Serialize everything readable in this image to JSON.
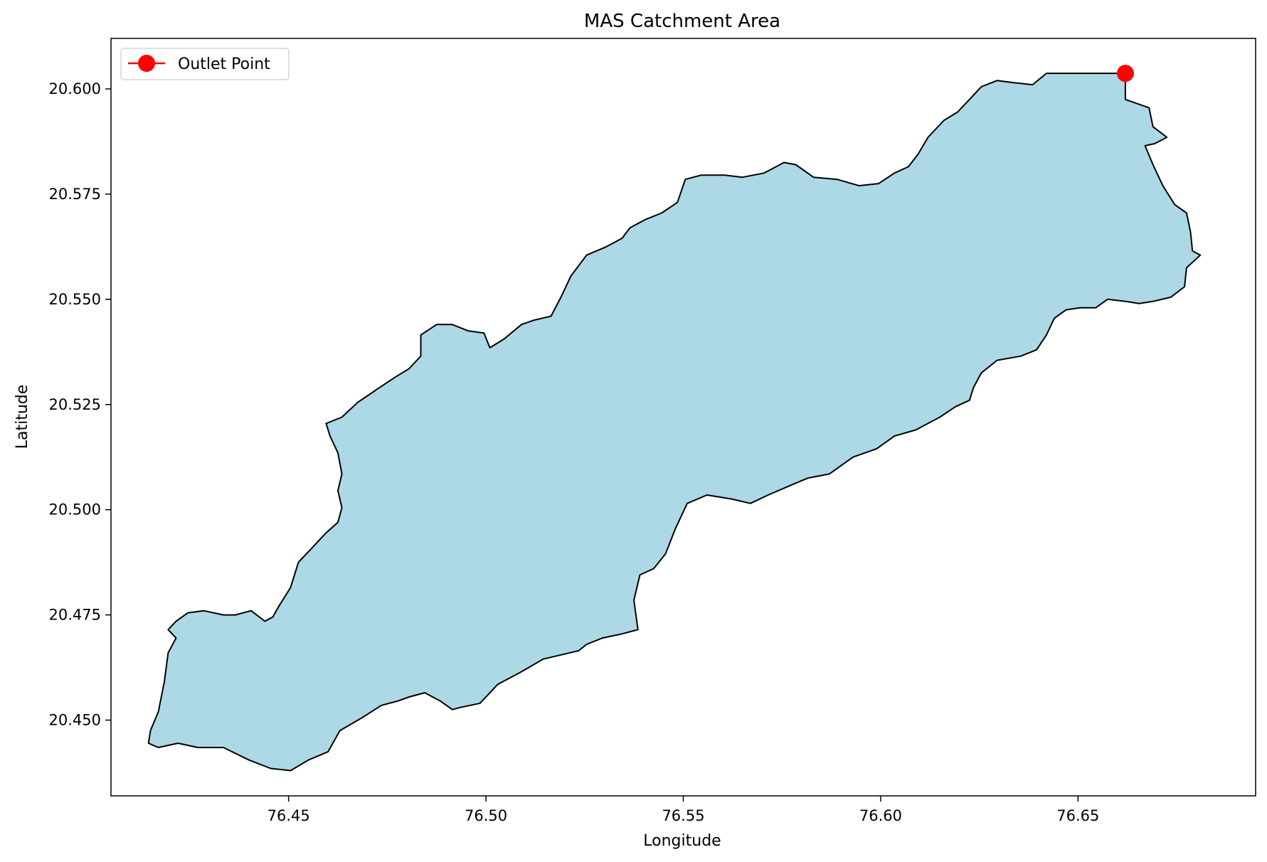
{
  "title": "MAS Catchment Area",
  "xlabel": "Longitude",
  "ylabel": "Latitude",
  "legend": {
    "label": "Outlet Point",
    "placement": "upper-left"
  },
  "colors": {
    "fill": "#add8e6",
    "edge": "#000000",
    "outlet": "#ff0000"
  },
  "chart_data": {
    "type": "map",
    "xlim": [
      76.405,
      76.695
    ],
    "ylim": [
      20.432,
      20.612
    ],
    "xticks": [
      76.45,
      76.5,
      76.55,
      76.6,
      76.65
    ],
    "xtick_labels": [
      "76.45",
      "76.50",
      "76.55",
      "76.60",
      "76.65"
    ],
    "yticks": [
      20.45,
      20.475,
      20.5,
      20.525,
      20.55,
      20.575,
      20.6
    ],
    "ytick_labels": [
      "20.450",
      "20.475",
      "20.500",
      "20.525",
      "20.550",
      "20.575",
      "20.600"
    ],
    "outlet": {
      "lon": 76.662,
      "lat": 20.6037
    },
    "catchment_boundary": [
      [
        76.642,
        20.6037
      ],
      [
        76.662,
        20.6037
      ],
      [
        76.662,
        20.5975
      ],
      [
        76.668,
        20.5955
      ],
      [
        76.669,
        20.591
      ],
      [
        76.6725,
        20.5885
      ],
      [
        76.6695,
        20.587
      ],
      [
        76.667,
        20.5865
      ],
      [
        76.669,
        20.582
      ],
      [
        76.6715,
        20.577
      ],
      [
        76.6745,
        20.5725
      ],
      [
        76.6775,
        20.5705
      ],
      [
        76.6785,
        20.566
      ],
      [
        76.679,
        20.5615
      ],
      [
        76.681,
        20.5605
      ],
      [
        76.6775,
        20.5575
      ],
      [
        76.677,
        20.553
      ],
      [
        76.6735,
        20.5505
      ],
      [
        76.669,
        20.5495
      ],
      [
        76.6655,
        20.549
      ],
      [
        76.662,
        20.5495
      ],
      [
        76.6575,
        20.55
      ],
      [
        76.6545,
        20.548
      ],
      [
        76.6505,
        20.548
      ],
      [
        76.647,
        20.5475
      ],
      [
        76.644,
        20.5455
      ],
      [
        76.642,
        20.5415
      ],
      [
        76.6395,
        20.538
      ],
      [
        76.6355,
        20.5365
      ],
      [
        76.6295,
        20.5355
      ],
      [
        76.6255,
        20.5325
      ],
      [
        76.6235,
        20.529
      ],
      [
        76.6225,
        20.526
      ],
      [
        76.619,
        20.5245
      ],
      [
        76.615,
        20.522
      ],
      [
        76.609,
        20.519
      ],
      [
        76.6035,
        20.5175
      ],
      [
        76.599,
        20.5145
      ],
      [
        76.593,
        20.5125
      ],
      [
        76.587,
        20.5085
      ],
      [
        76.5815,
        20.5075
      ],
      [
        76.5765,
        20.5055
      ],
      [
        76.5715,
        20.5035
      ],
      [
        76.567,
        20.5015
      ],
      [
        76.5625,
        20.5025
      ],
      [
        76.556,
        20.5035
      ],
      [
        76.551,
        20.5015
      ],
      [
        76.548,
        20.4955
      ],
      [
        76.5455,
        20.4895
      ],
      [
        76.5425,
        20.486
      ],
      [
        76.539,
        20.4845
      ],
      [
        76.5375,
        20.4785
      ],
      [
        76.5385,
        20.4715
      ],
      [
        76.5345,
        20.4705
      ],
      [
        76.5295,
        20.4695
      ],
      [
        76.5255,
        20.468
      ],
      [
        76.5235,
        20.4665
      ],
      [
        76.519,
        20.4655
      ],
      [
        76.5145,
        20.4645
      ],
      [
        76.509,
        20.4615
      ],
      [
        76.503,
        20.4585
      ],
      [
        76.4985,
        20.454
      ],
      [
        76.4935,
        20.453
      ],
      [
        76.4915,
        20.4525
      ],
      [
        76.4885,
        20.4545
      ],
      [
        76.4845,
        20.4565
      ],
      [
        76.4805,
        20.4555
      ],
      [
        76.4775,
        20.4545
      ],
      [
        76.4735,
        20.4535
      ],
      [
        76.4685,
        20.4505
      ],
      [
        76.463,
        20.4475
      ],
      [
        76.46,
        20.4425
      ],
      [
        76.455,
        20.4405
      ],
      [
        76.4505,
        20.438
      ],
      [
        76.4455,
        20.4385
      ],
      [
        76.44,
        20.4405
      ],
      [
        76.4335,
        20.4435
      ],
      [
        76.427,
        20.4435
      ],
      [
        76.422,
        20.4445
      ],
      [
        76.417,
        20.4435
      ],
      [
        76.4145,
        20.4445
      ],
      [
        76.415,
        20.4475
      ],
      [
        76.417,
        20.452
      ],
      [
        76.4185,
        20.459
      ],
      [
        76.4195,
        20.466
      ],
      [
        76.4215,
        20.4695
      ],
      [
        76.4195,
        20.4715
      ],
      [
        76.4215,
        20.4735
      ],
      [
        76.4245,
        20.4755
      ],
      [
        76.4285,
        20.476
      ],
      [
        76.4335,
        20.475
      ],
      [
        76.4365,
        20.475
      ],
      [
        76.4405,
        20.476
      ],
      [
        76.444,
        20.4735
      ],
      [
        76.446,
        20.4745
      ],
      [
        76.4475,
        20.477
      ],
      [
        76.4505,
        20.4815
      ],
      [
        76.4525,
        20.4875
      ],
      [
        76.456,
        20.491
      ],
      [
        76.4595,
        20.4945
      ],
      [
        76.4625,
        20.497
      ],
      [
        76.4635,
        20.5005
      ],
      [
        76.4625,
        20.5045
      ],
      [
        76.4635,
        20.5085
      ],
      [
        76.4625,
        20.5135
      ],
      [
        76.4605,
        20.5175
      ],
      [
        76.4595,
        20.5205
      ],
      [
        76.4635,
        20.522
      ],
      [
        76.4675,
        20.5255
      ],
      [
        76.473,
        20.529
      ],
      [
        76.477,
        20.5315
      ],
      [
        76.4805,
        20.5335
      ],
      [
        76.4835,
        20.5365
      ],
      [
        76.4835,
        20.5415
      ],
      [
        76.4875,
        20.544
      ],
      [
        76.4915,
        20.544
      ],
      [
        76.4955,
        20.5425
      ],
      [
        76.4995,
        20.542
      ],
      [
        76.501,
        20.5385
      ],
      [
        76.5045,
        20.5405
      ],
      [
        76.509,
        20.544
      ],
      [
        76.512,
        20.545
      ],
      [
        76.5165,
        20.546
      ],
      [
        76.519,
        20.5505
      ],
      [
        76.5215,
        20.5555
      ],
      [
        76.5255,
        20.5605
      ],
      [
        76.5305,
        20.5625
      ],
      [
        76.5345,
        20.5645
      ],
      [
        76.5365,
        20.567
      ],
      [
        76.5405,
        20.569
      ],
      [
        76.5445,
        20.5705
      ],
      [
        76.5485,
        20.573
      ],
      [
        76.5505,
        20.5785
      ],
      [
        76.5545,
        20.5795
      ],
      [
        76.5605,
        20.5795
      ],
      [
        76.565,
        20.579
      ],
      [
        76.5705,
        20.58
      ],
      [
        76.5755,
        20.5825
      ],
      [
        76.5785,
        20.582
      ],
      [
        76.583,
        20.579
      ],
      [
        76.589,
        20.5785
      ],
      [
        76.5945,
        20.577
      ],
      [
        76.5995,
        20.5775
      ],
      [
        76.6035,
        20.58
      ],
      [
        76.607,
        20.5815
      ],
      [
        76.6095,
        20.5845
      ],
      [
        76.612,
        20.5885
      ],
      [
        76.616,
        20.5925
      ],
      [
        76.6195,
        20.5945
      ],
      [
        76.6225,
        20.5975
      ],
      [
        76.6255,
        20.6005
      ],
      [
        76.6295,
        20.602
      ],
      [
        76.6335,
        20.6015
      ],
      [
        76.6385,
        20.601
      ],
      [
        76.642,
        20.6037
      ]
    ]
  }
}
